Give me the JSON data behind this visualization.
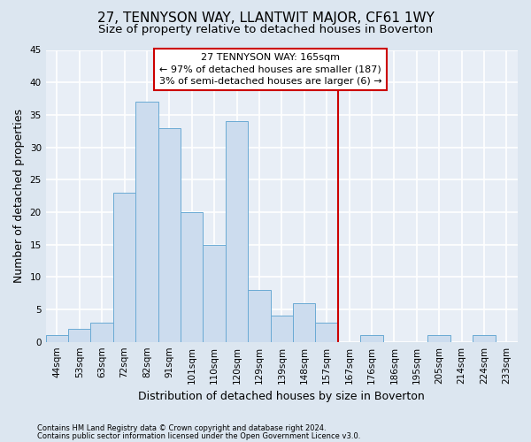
{
  "title": "27, TENNYSON WAY, LLANTWIT MAJOR, CF61 1WY",
  "subtitle": "Size of property relative to detached houses in Boverton",
  "xlabel": "Distribution of detached houses by size in Boverton",
  "ylabel": "Number of detached properties",
  "footer1": "Contains HM Land Registry data © Crown copyright and database right 2024.",
  "footer2": "Contains public sector information licensed under the Open Government Licence v3.0.",
  "bin_labels": [
    "44sqm",
    "53sqm",
    "63sqm",
    "72sqm",
    "82sqm",
    "91sqm",
    "101sqm",
    "110sqm",
    "120sqm",
    "129sqm",
    "139sqm",
    "148sqm",
    "157sqm",
    "167sqm",
    "176sqm",
    "186sqm",
    "195sqm",
    "205sqm",
    "214sqm",
    "224sqm",
    "233sqm"
  ],
  "bar_heights": [
    1,
    2,
    3,
    23,
    37,
    33,
    20,
    15,
    34,
    8,
    4,
    6,
    3,
    0,
    1,
    0,
    0,
    1,
    0,
    1,
    0
  ],
  "bar_color": "#ccdcee",
  "bar_edge_color": "#6aaad4",
  "vline_x_bin": 13,
  "annotation_text1": "27 TENNYSON WAY: 165sqm",
  "annotation_text2": "← 97% of detached houses are smaller (187)",
  "annotation_text3": "3% of semi-detached houses are larger (6) →",
  "annotation_box_color": "#ffffff",
  "annotation_border_color": "#cc0000",
  "vline_color": "#cc0000",
  "ylim": [
    0,
    45
  ],
  "yticks": [
    0,
    5,
    10,
    15,
    20,
    25,
    30,
    35,
    40,
    45
  ],
  "bg_color": "#dce6f0",
  "plot_bg_color": "#e8eef6",
  "grid_color": "#ffffff",
  "title_fontsize": 11,
  "subtitle_fontsize": 9.5,
  "tick_fontsize": 7.5,
  "ylabel_fontsize": 9,
  "xlabel_fontsize": 9,
  "footer_fontsize": 6,
  "ann_fontsize": 8
}
